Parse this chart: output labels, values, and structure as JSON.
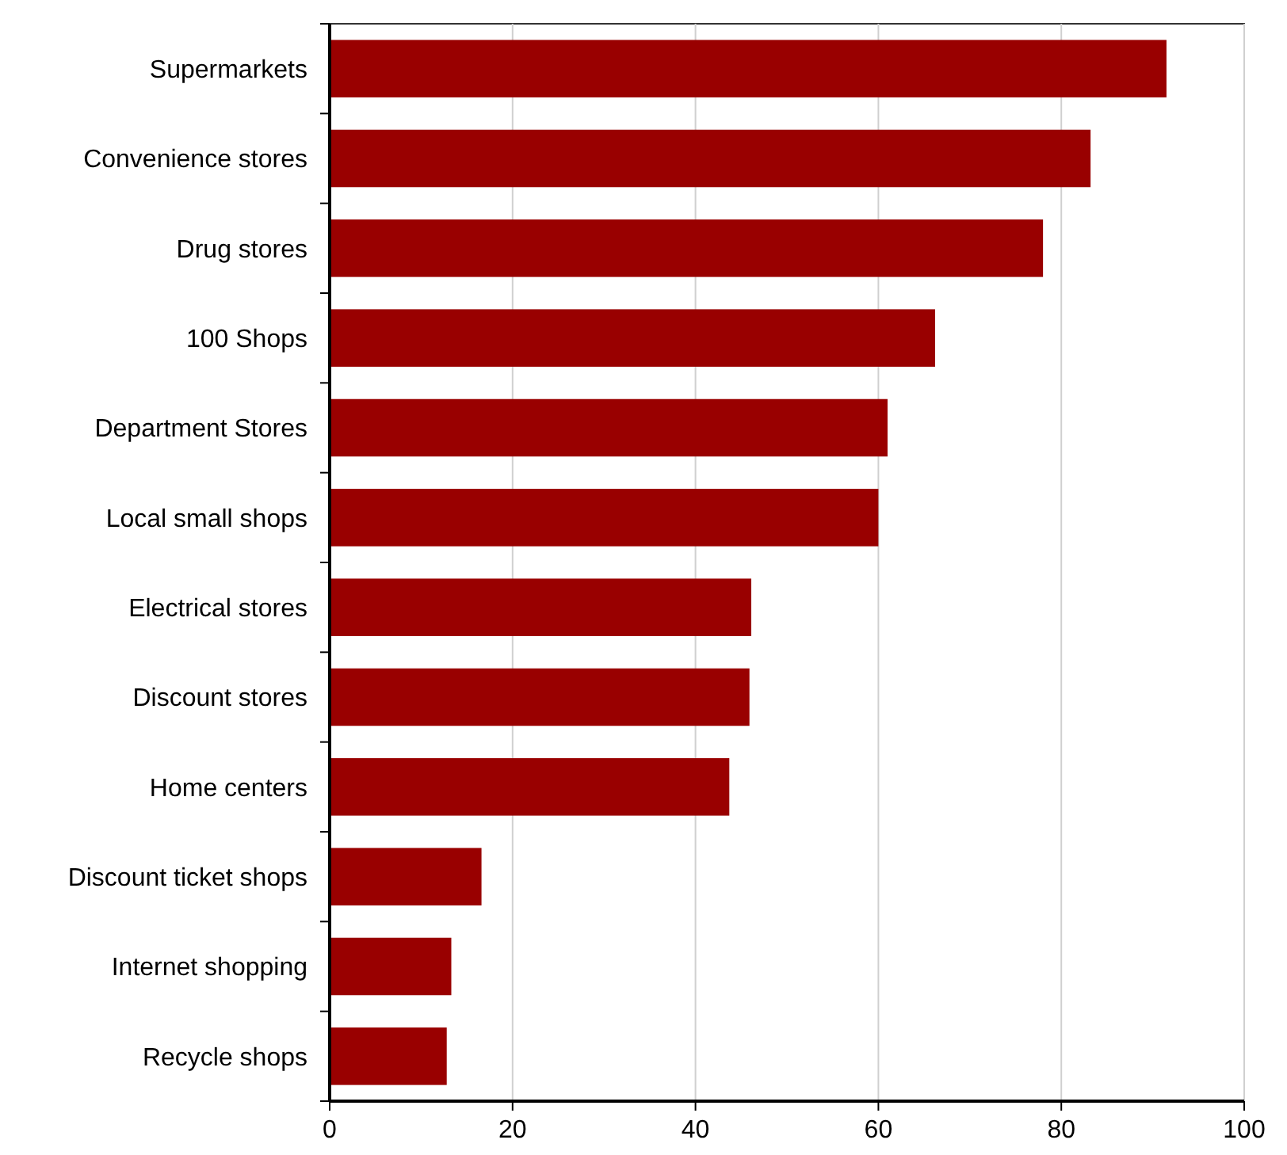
{
  "chart_data": {
    "type": "bar",
    "orientation": "horizontal",
    "categories": [
      "Supermarkets",
      "Convenience stores",
      "Drug stores",
      "100 Shops",
      "Department Stores",
      "Local small shops",
      "Electrical stores",
      "Discount stores",
      "Home centers",
      "Discount ticket shops",
      "Internet shopping",
      "Recycle shops"
    ],
    "values": [
      91.5,
      83.2,
      78,
      66.2,
      61,
      60,
      46.1,
      45.9,
      43.7,
      16.6,
      13.3,
      12.8
    ],
    "color": "#990000",
    "xlim": [
      0,
      100
    ],
    "xticks": [
      0,
      20,
      40,
      60,
      80,
      100
    ],
    "grid": "x"
  }
}
